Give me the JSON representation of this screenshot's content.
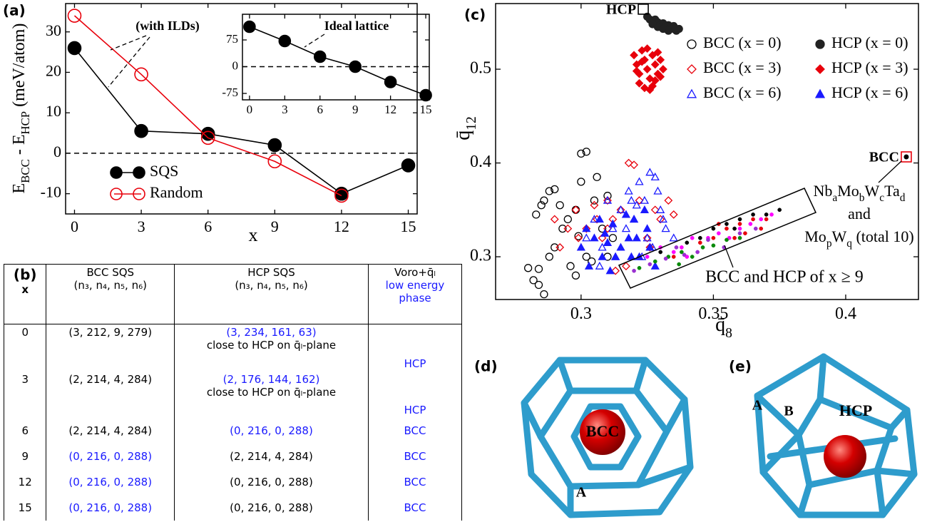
{
  "chart_data": [
    {
      "type": "line",
      "panel_label": "(a)",
      "x_label": "x",
      "y_label": [
        "E",
        "BCC",
        " - E",
        "HCP",
        " (meV/atom)"
      ],
      "x": [
        0,
        3,
        6,
        9,
        12,
        15
      ],
      "series": [
        {
          "name": "SQS",
          "color": "#000000",
          "filled": true,
          "values": [
            26,
            5.5,
            4.8,
            2,
            -10,
            -3
          ]
        },
        {
          "name": "Random",
          "color": "#e8000b",
          "filled": false,
          "values": [
            34,
            19.5,
            3.8,
            -2,
            -10.5,
            null
          ]
        }
      ],
      "xlim": [
        -0.4,
        15.4
      ],
      "ylim": [
        -15,
        37
      ],
      "xticks": [
        0,
        3,
        6,
        9,
        12,
        15
      ],
      "yticks": [
        -10,
        0,
        10,
        20,
        30
      ],
      "hline": 0,
      "legend": "lower left",
      "annotations": [
        "(with ILDs)"
      ]
    },
    {
      "type": "line",
      "x": [
        0,
        3,
        6,
        9,
        12,
        15
      ],
      "series": [
        {
          "color": "#000000",
          "filled": true,
          "values": [
            112,
            72,
            28,
            0,
            -43,
            -80
          ]
        }
      ],
      "xlim": [
        -0.6,
        15.3
      ],
      "ylim": [
        -93,
        147
      ],
      "xticks": [
        0,
        3,
        6,
        9,
        12,
        15
      ],
      "yticks": [
        -75,
        0,
        75
      ],
      "hline": 0,
      "annotations": [
        "Ideal lattice"
      ]
    },
    {
      "type": "scatter",
      "panel_label": "(c)",
      "x_label": [
        "q̄",
        "8"
      ],
      "y_label": [
        "q̄",
        "12"
      ],
      "xlim": [
        0.2677,
        0.4275
      ],
      "ylim": [
        0.2544,
        0.57
      ],
      "xticks": [
        0.3,
        0.35,
        0.4
      ],
      "yticks": [
        0.3,
        0.4,
        0.5
      ],
      "legend": "upper right",
      "series": [
        {
          "name": "BCC (x = 0)",
          "color": "#000000",
          "marker": "circle",
          "filled": false,
          "x": [
            0.28,
            0.282,
            0.284,
            0.286,
            0.283,
            0.285,
            0.286,
            0.288,
            0.29,
            0.29,
            0.293,
            0.295,
            0.298,
            0.3,
            0.3,
            0.302,
            0.305,
            0.308,
            0.31,
            0.296,
            0.298,
            0.302,
            0.312,
            0.306,
            0.31,
            0.292,
            0.288,
            0.284,
            0.304,
            0.299
          ],
          "y": [
            0.288,
            0.275,
            0.27,
            0.26,
            0.345,
            0.355,
            0.36,
            0.37,
            0.372,
            0.31,
            0.33,
            0.34,
            0.35,
            0.38,
            0.41,
            0.412,
            0.36,
            0.33,
            0.3,
            0.29,
            0.28,
            0.3,
            0.32,
            0.385,
            0.365,
            0.355,
            0.3,
            0.287,
            0.295,
            0.322
          ]
        },
        {
          "name": "HCP (x = 0)",
          "color": "#222222",
          "marker": "circle",
          "filled": true,
          "x": [
            0.325,
            0.326,
            0.327,
            0.328,
            0.329,
            0.33,
            0.331,
            0.332,
            0.333,
            0.334,
            0.335,
            0.336,
            0.329,
            0.331,
            0.333,
            0.327,
            0.335,
            0.337
          ],
          "y": [
            0.556,
            0.553,
            0.551,
            0.553,
            0.55,
            0.548,
            0.549,
            0.546,
            0.547,
            0.544,
            0.543,
            0.541,
            0.545,
            0.543,
            0.541,
            0.548,
            0.546,
            0.543
          ]
        },
        {
          "name": "BCC (x = 3)",
          "color": "#e8000b",
          "marker": "diamond",
          "filled": false,
          "x": [
            0.29,
            0.292,
            0.295,
            0.298,
            0.302,
            0.305,
            0.308,
            0.31,
            0.312,
            0.315,
            0.318,
            0.32,
            0.322,
            0.325,
            0.328,
            0.33,
            0.333,
            0.317,
            0.313,
            0.306,
            0.299,
            0.326,
            0.31,
            0.335
          ],
          "y": [
            0.34,
            0.31,
            0.33,
            0.35,
            0.33,
            0.355,
            0.32,
            0.36,
            0.34,
            0.35,
            0.4,
            0.398,
            0.36,
            0.32,
            0.35,
            0.34,
            0.36,
            0.29,
            0.285,
            0.34,
            0.32,
            0.31,
            0.33,
            0.345
          ]
        },
        {
          "name": "HCP (x = 3)",
          "color": "#e8000b",
          "marker": "diamond",
          "filled": true,
          "x": [
            0.32,
            0.321,
            0.322,
            0.323,
            0.324,
            0.325,
            0.326,
            0.327,
            0.328,
            0.329,
            0.33,
            0.331,
            0.322,
            0.324,
            0.326,
            0.328,
            0.33,
            0.321,
            0.325,
            0.329,
            0.327,
            0.323
          ],
          "y": [
            0.515,
            0.505,
            0.495,
            0.52,
            0.51,
            0.5,
            0.49,
            0.515,
            0.505,
            0.495,
            0.51,
            0.5,
            0.485,
            0.48,
            0.478,
            0.488,
            0.492,
            0.498,
            0.522,
            0.518,
            0.482,
            0.508
          ]
        },
        {
          "name": "BCC (x = 6)",
          "color": "#1a1aff",
          "marker": "triangle",
          "filled": false,
          "x": [
            0.302,
            0.305,
            0.308,
            0.31,
            0.312,
            0.315,
            0.318,
            0.32,
            0.322,
            0.324,
            0.326,
            0.328,
            0.33,
            0.332,
            0.335,
            0.323,
            0.327,
            0.319,
            0.313,
            0.307,
            0.329,
            0.331,
            0.325,
            0.317,
            0.321
          ],
          "y": [
            0.32,
            0.34,
            0.31,
            0.36,
            0.33,
            0.35,
            0.37,
            0.34,
            0.38,
            0.36,
            0.39,
            0.385,
            0.35,
            0.33,
            0.32,
            0.3,
            0.31,
            0.36,
            0.3,
            0.29,
            0.37,
            0.34,
            0.32,
            0.33,
            0.355
          ]
        },
        {
          "name": "HCP (x = 6)",
          "color": "#1a1aff",
          "marker": "triangle",
          "filled": true,
          "x": [
            0.3,
            0.302,
            0.305,
            0.308,
            0.31,
            0.312,
            0.315,
            0.318,
            0.32,
            0.322,
            0.325,
            0.328,
            0.303,
            0.307,
            0.313,
            0.317,
            0.321,
            0.326,
            0.309,
            0.311,
            0.319,
            0.324
          ],
          "y": [
            0.31,
            0.33,
            0.32,
            0.3,
            0.315,
            0.335,
            0.31,
            0.32,
            0.34,
            0.3,
            0.33,
            0.29,
            0.29,
            0.34,
            0.3,
            0.345,
            0.32,
            0.31,
            0.325,
            0.285,
            0.3,
            0.35
          ]
        },
        {
          "color": "#000000",
          "marker": "dot",
          "filled": true,
          "x": [
            0.33,
            0.34,
            0.35,
            0.355,
            0.36,
            0.365,
            0.37,
            0.375,
            0.345,
            0.358
          ],
          "y": [
            0.305,
            0.315,
            0.33,
            0.335,
            0.34,
            0.345,
            0.345,
            0.35,
            0.32,
            0.33
          ]
        },
        {
          "color": "#e8000b",
          "marker": "dot",
          "filled": true,
          "x": [
            0.335,
            0.345,
            0.35,
            0.355,
            0.36,
            0.362,
            0.365,
            0.368,
            0.37,
            0.358,
            0.352
          ],
          "y": [
            0.3,
            0.315,
            0.32,
            0.33,
            0.335,
            0.325,
            0.34,
            0.33,
            0.34,
            0.32,
            0.335
          ]
        },
        {
          "color": "#ff00ff",
          "marker": "dot",
          "filled": true,
          "x": [
            0.325,
            0.33,
            0.338,
            0.342,
            0.348,
            0.352,
            0.356,
            0.36,
            0.364,
            0.368,
            0.372,
            0.34,
            0.335
          ],
          "y": [
            0.3,
            0.31,
            0.31,
            0.32,
            0.32,
            0.325,
            0.32,
            0.33,
            0.335,
            0.34,
            0.345,
            0.3,
            0.305
          ]
        },
        {
          "color": "#0a8a0a",
          "marker": "dot",
          "filled": true,
          "x": [
            0.322,
            0.328,
            0.333,
            0.338,
            0.342,
            0.346,
            0.35,
            0.355,
            0.36,
            0.337
          ],
          "y": [
            0.288,
            0.295,
            0.3,
            0.305,
            0.3,
            0.31,
            0.312,
            0.318,
            0.32,
            0.292
          ]
        },
        {
          "color": "#9a30d0",
          "marker": "dot",
          "filled": true,
          "x": [
            0.32,
            0.326,
            0.332,
            0.336,
            0.344,
            0.348,
            0.354,
            0.36,
            0.366,
            0.339
          ],
          "y": [
            0.285,
            0.292,
            0.298,
            0.31,
            0.305,
            0.318,
            0.31,
            0.325,
            0.33,
            0.302
          ]
        }
      ],
      "reference_points": [
        {
          "label": "HCP",
          "x": 0.3235,
          "y": 0.564,
          "color": "#000000"
        },
        {
          "label": "BCC",
          "x": 0.4229,
          "y": 0.4065,
          "color": "#e8000b"
        }
      ],
      "annotations": {
        "compound_a": [
          "Nb",
          "a",
          "Mo",
          "b",
          "W",
          "c",
          "Ta",
          "d"
        ],
        "and": "and",
        "compound_b": [
          "Mo",
          "p",
          "W",
          "q",
          " (total 10)"
        ],
        "band": "BCC and HCP of x ≥ 9"
      }
    }
  ],
  "table": {
    "panel_label": "(b)",
    "header": [
      [
        "x"
      ],
      [
        "BCC SQS",
        "(n₃, n₄, n₅, n₆)"
      ],
      [
        "HCP SQS",
        "(n₃, n₄, n₅, n₆)"
      ],
      [
        "Voro+q̄ₗ",
        "low energy",
        "phase"
      ]
    ],
    "rows": [
      {
        "cells": [
          0,
          "(3, 212, 9, 279)",
          "(3, 234, 161, 63)",
          "HCP"
        ],
        "note": "close to HCP on q̄ₗ-plane",
        "highlight": [
          2,
          3
        ]
      },
      {
        "cells": [
          3,
          "(2, 214, 4, 284)",
          "(2, 176, 144, 162)",
          "HCP"
        ],
        "note": "close to HCP on q̄ₗ-plane",
        "highlight": [
          2,
          3
        ]
      },
      {
        "cells": [
          6,
          "(2, 214, 4, 284)",
          "(0, 216, 0, 288)",
          "BCC"
        ],
        "highlight": [
          2,
          3
        ]
      },
      {
        "cells": [
          9,
          "(0, 216, 0, 288)",
          "(2, 214, 4, 284)",
          "BCC"
        ],
        "highlight": [
          1,
          3
        ]
      },
      {
        "cells": [
          12,
          "(0, 216, 0, 288)",
          "(0, 216, 0, 288)",
          "BCC"
        ],
        "highlight": [
          1,
          3
        ]
      },
      {
        "cells": [
          15,
          "(0, 216, 0, 288)",
          "(0, 216, 0, 288)",
          "BCC"
        ],
        "highlight": [
          1,
          3
        ]
      }
    ]
  },
  "images": [
    {
      "panel_label": "(d)",
      "labels": [
        "BCC",
        "A"
      ]
    },
    {
      "panel_label": "(e)",
      "labels": [
        "A",
        "B",
        "HCP"
      ]
    }
  ]
}
